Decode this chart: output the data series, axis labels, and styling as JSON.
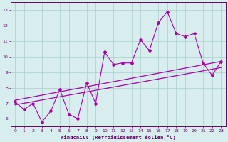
{
  "x": [
    0,
    1,
    2,
    3,
    4,
    5,
    6,
    7,
    8,
    9,
    10,
    11,
    12,
    13,
    14,
    15,
    16,
    17,
    18,
    19,
    20,
    21,
    22,
    23
  ],
  "y": [
    7.1,
    6.6,
    7.0,
    5.8,
    6.5,
    7.9,
    6.3,
    6.0,
    8.3,
    7.0,
    10.3,
    9.5,
    9.6,
    9.6,
    11.1,
    10.4,
    12.2,
    12.9,
    11.5,
    11.3,
    11.5,
    9.6,
    8.8,
    9.7
  ],
  "lower_line": [
    6.9,
    9.3
  ],
  "upper_line": [
    7.2,
    9.7
  ],
  "trend_color": "#aa00aa",
  "line_color": "#aa00aa",
  "bg_color": "#d8eeee",
  "grid_color": "#aacccc",
  "axis_color": "#660066",
  "xlabel": "Windchill (Refroidissement éolien,°C)",
  "ylim": [
    5.5,
    13.5
  ],
  "xlim": [
    -0.5,
    23.5
  ],
  "yticks": [
    6,
    7,
    8,
    9,
    10,
    11,
    12,
    13
  ],
  "xticks": [
    0,
    1,
    2,
    3,
    4,
    5,
    6,
    7,
    8,
    9,
    10,
    11,
    12,
    13,
    14,
    15,
    16,
    17,
    18,
    19,
    20,
    21,
    22,
    23
  ]
}
